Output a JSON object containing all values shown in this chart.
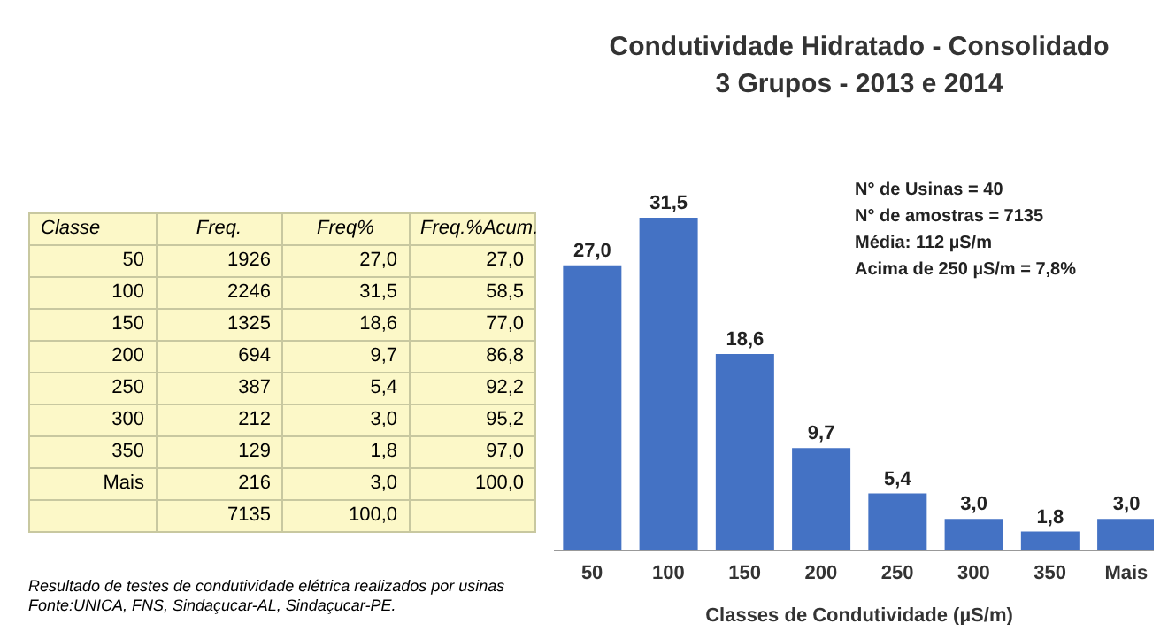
{
  "chart_data": [
    {
      "type": "heatmap",
      "ylabel": "Classe",
      "categories": [
        "Freq.",
        "Freq%",
        "Freq.%Acum."
      ],
      "y_categories": [
        "50",
        "100",
        "150",
        "200",
        "250",
        "300",
        "350",
        "Mais",
        null
      ],
      "cells": [
        [
          1926,
          27.0,
          27.0
        ],
        [
          2246,
          31.5,
          58.5
        ],
        [
          1325,
          18.6,
          77.0
        ],
        [
          694,
          9.7,
          86.8
        ],
        [
          387,
          5.4,
          92.2
        ],
        [
          212,
          3.0,
          95.2
        ],
        [
          129,
          1.8,
          97.0
        ],
        [
          216,
          3.0,
          100.0
        ],
        [
          7135,
          100.0,
          null
        ]
      ],
      "cell_labels": [
        [
          "1926",
          "27,0",
          "27,0"
        ],
        [
          "2246",
          "31,5",
          "58,5"
        ],
        [
          "1325",
          "18,6",
          "77,0"
        ],
        [
          "694",
          "9,7",
          "86,8"
        ],
        [
          "387",
          "5,4",
          "92,2"
        ],
        [
          "212",
          "3,0",
          "95,2"
        ],
        [
          "129",
          "1,8",
          "97,0"
        ],
        [
          "216",
          "3,0",
          "100,0"
        ],
        [
          "7135",
          "100,0",
          null
        ]
      ],
      "annotations": [
        "Resultado de testes de condutividade elétrica realizados por usinas",
        "Fonte:UNICA, FNS, Sindaçucar-AL, Sindaçucar-PE."
      ]
    },
    {
      "type": "bar",
      "title": "Condutividade Hidratado - Consolidado",
      "subtitle": "3 Grupos - 2013 e 2014",
      "xlabel": "Classes de Condutividade (µS/m)",
      "categories": [
        "50",
        "100",
        "150",
        "200",
        "250",
        "300",
        "350",
        "Mais"
      ],
      "values": [
        27.0,
        31.5,
        18.6,
        9.7,
        5.4,
        3.0,
        1.8,
        3.0
      ],
      "value_labels": [
        "27,0",
        "31,5",
        "18,6",
        "9,7",
        "5,4",
        "3,0",
        "1,8",
        "3,0"
      ],
      "color": "#4472c4",
      "annotations": [
        "N° de Usinas = 40",
        "N° de amostras = 7135",
        "Média: 112 µS/m",
        "Acima de 250 µS/m = 7,8%"
      ]
    }
  ]
}
